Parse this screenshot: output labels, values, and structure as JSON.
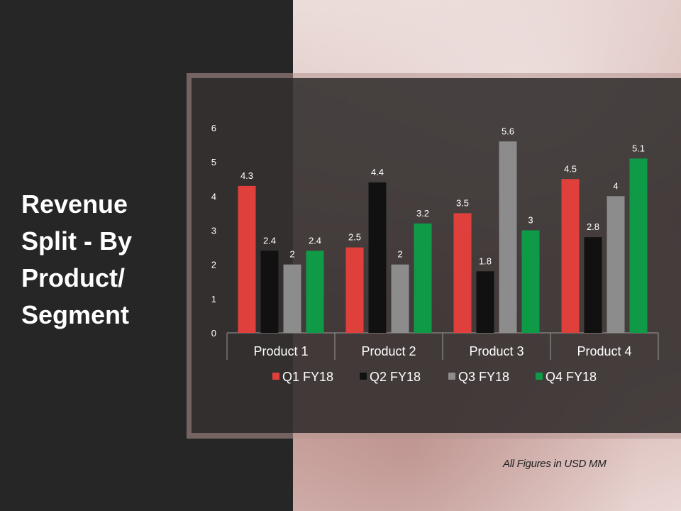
{
  "slide": {
    "title_lines": [
      "Revenue",
      "Split - By",
      "Product/",
      "Segment"
    ],
    "footnote": "All Figures in USD MM"
  },
  "chart_data": {
    "type": "bar",
    "categories": [
      "Product 1",
      "Product 2",
      "Product 3",
      "Product 4"
    ],
    "series": [
      {
        "name": "Q1 FY18",
        "color": "#e0403c",
        "values": [
          4.3,
          2.5,
          3.5,
          4.5
        ]
      },
      {
        "name": "Q2 FY18",
        "color": "#111111",
        "values": [
          2.4,
          4.4,
          1.8,
          2.8
        ]
      },
      {
        "name": "Q3 FY18",
        "color": "#8c8c8c",
        "values": [
          2,
          2,
          5.6,
          4
        ]
      },
      {
        "name": "Q4 FY18",
        "color": "#0f9a48",
        "values": [
          2.4,
          3.2,
          3,
          5.1
        ]
      }
    ],
    "y_ticks": [
      "0",
      "1",
      "2",
      "3",
      "4",
      "5",
      "6"
    ],
    "ylim": [
      0,
      6
    ],
    "grid": false,
    "legend_position": "bottom",
    "data_labels": true
  }
}
